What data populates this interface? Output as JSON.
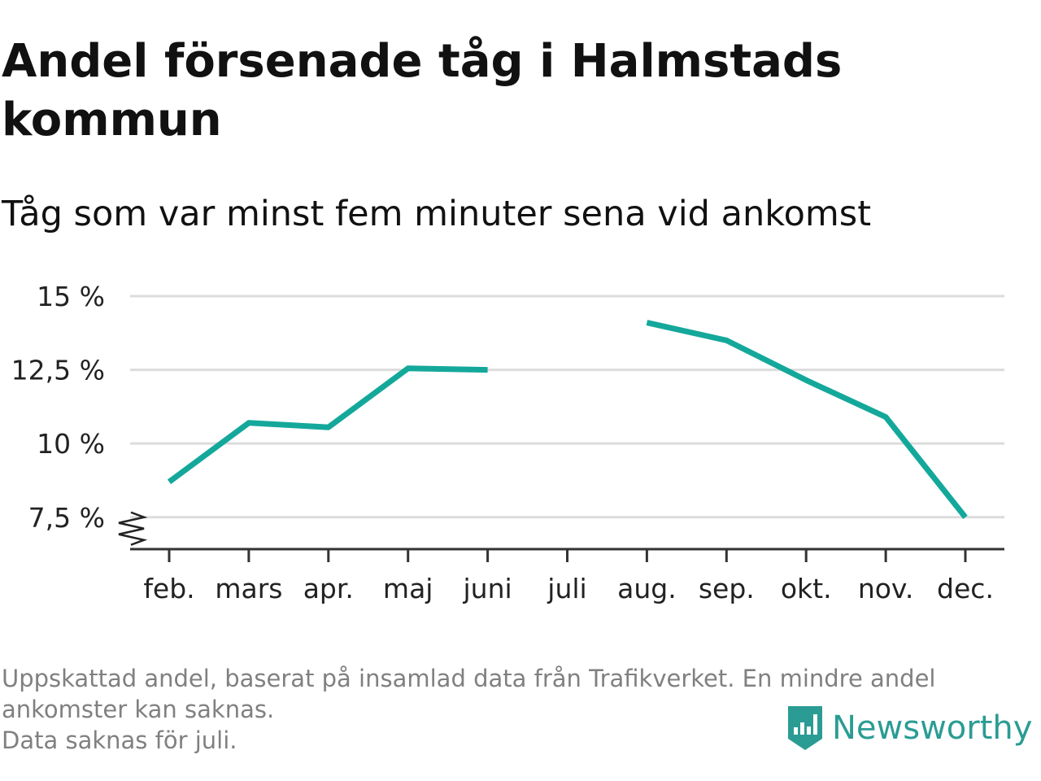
{
  "header": {
    "title": "Andel försenade tåg i Halmstads kommun",
    "subtitle": "Tåg som var minst fem minuter sena vid ankomst"
  },
  "chart_data": {
    "type": "line",
    "title": "Andel försenade tåg i Halmstads kommun",
    "subtitle": "Tåg som var minst fem minuter sena vid ankomst",
    "xlabel": "",
    "ylabel": "",
    "categories": [
      "feb.",
      "mars",
      "apr.",
      "maj",
      "juni",
      "juli",
      "aug.",
      "sep.",
      "okt.",
      "nov.",
      "dec."
    ],
    "series": [
      {
        "values": [
          8.7,
          10.7,
          10.55,
          12.55,
          12.5,
          null,
          14.1,
          13.5,
          12.15,
          10.9,
          7.5
        ]
      }
    ],
    "ylim": [
      6.5,
      15
    ],
    "yticks": [
      7.5,
      10,
      12.5,
      15
    ],
    "ytick_labels": [
      "7,5 %",
      "10 %",
      "12,5 %",
      "15 %"
    ],
    "axis_break": true,
    "grid": true,
    "line_color": "#14a89b",
    "grid_color": "#dcdcdc"
  },
  "footnote": {
    "line1": "Uppskattad andel, baserat på insamlad data från Trafikverket. En mindre andel",
    "line2": "ankomster kan saknas.",
    "line3": "Data saknas för juli."
  },
  "logo": {
    "text": "Newsworthy",
    "icon": "newsworthy-bar-chart-icon",
    "color": "#2a9c93"
  }
}
